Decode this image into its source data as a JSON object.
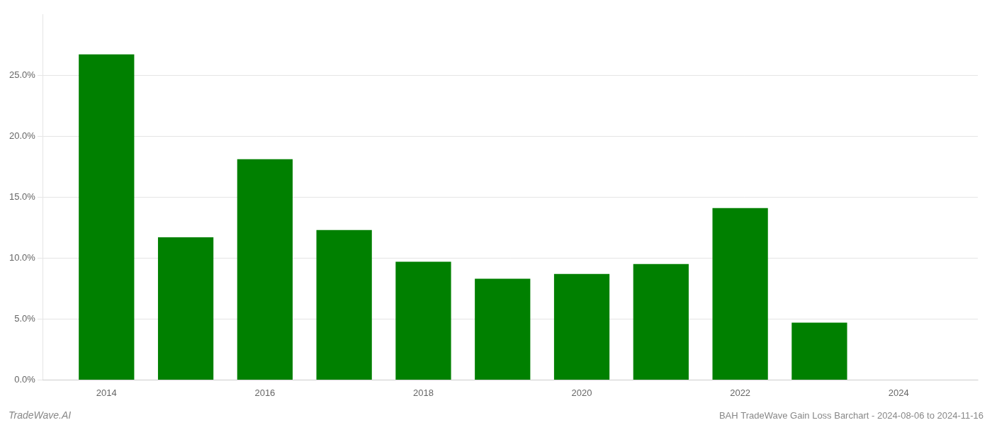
{
  "chart_data": {
    "type": "bar",
    "x": [
      2014,
      2015,
      2016,
      2017,
      2018,
      2019,
      2020,
      2021,
      2022,
      2023,
      2024
    ],
    "values": [
      0.267,
      0.117,
      0.181,
      0.123,
      0.097,
      0.083,
      0.087,
      0.095,
      0.141,
      0.047,
      0.0
    ],
    "color": "#008000",
    "xlim": [
      2013.2,
      2025.0
    ],
    "xticks": [
      2014,
      2016,
      2018,
      2020,
      2022,
      2024
    ],
    "ylim": [
      0,
      0.3
    ],
    "yticks": [
      {
        "value": 0.0,
        "label": "0.0%"
      },
      {
        "value": 0.05,
        "label": "5.0%"
      },
      {
        "value": 0.1,
        "label": "10.0%"
      },
      {
        "value": 0.15,
        "label": "15.0%"
      },
      {
        "value": 0.2,
        "label": "20.0%"
      },
      {
        "value": 0.25,
        "label": "25.0%"
      }
    ],
    "grid": "y",
    "annotations": [
      "TradeWave.AI",
      "BAH TradeWave Gain Loss Barchart - 2024-08-06 to 2024-11-16"
    ]
  }
}
